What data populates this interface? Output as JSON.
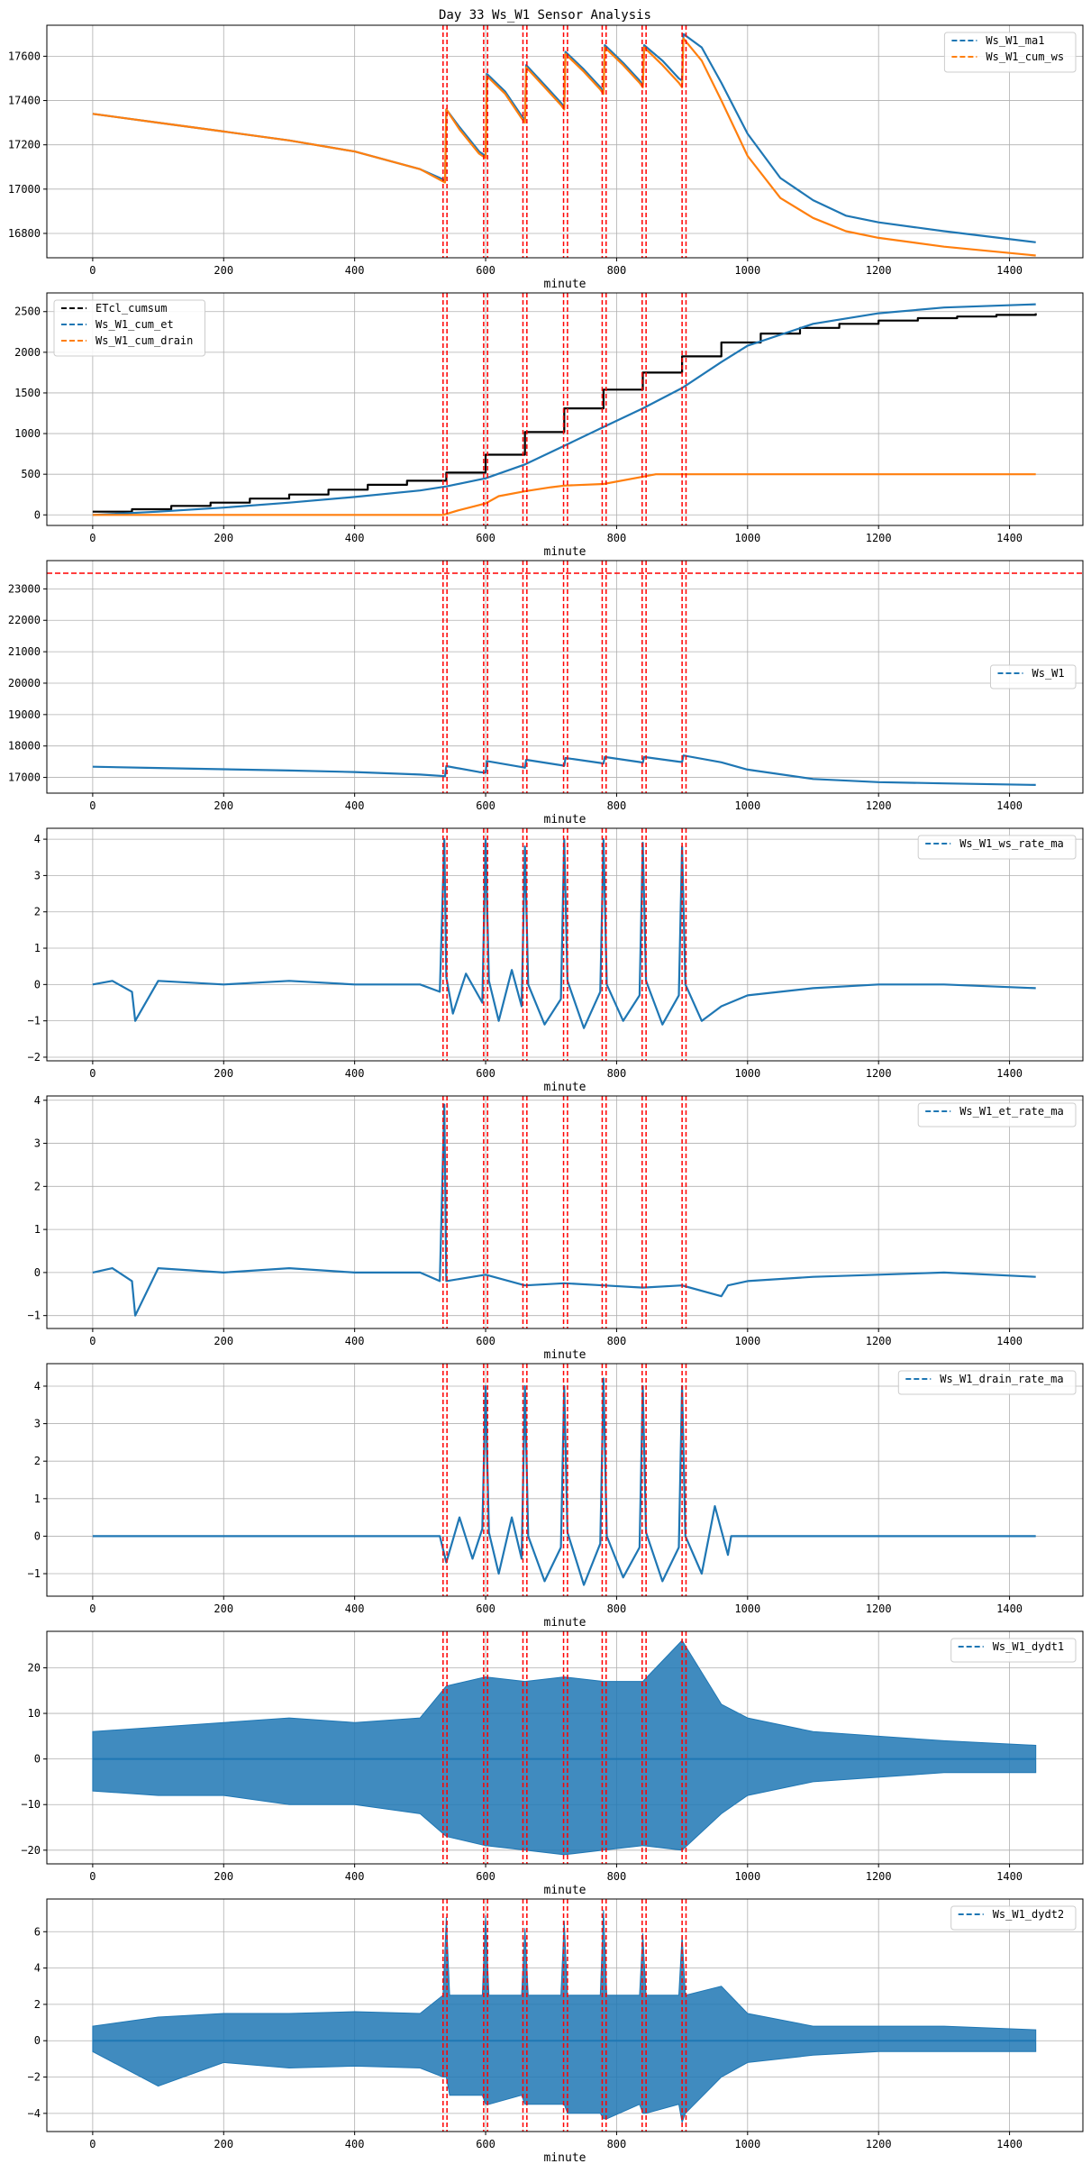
{
  "figure": {
    "title": "Day 33 Ws_W1 Sensor Analysis"
  },
  "event_lines_x": [
    535,
    541,
    597,
    603,
    657,
    663,
    719,
    725,
    778,
    784,
    839,
    845,
    900,
    906
  ],
  "chart_data": [
    {
      "type": "line",
      "xlabel": "minute",
      "xlim": [
        -70,
        1512
      ],
      "xticks": [
        0,
        200,
        400,
        600,
        800,
        1000,
        1200,
        1400
      ],
      "ylim": [
        16690,
        17740
      ],
      "yticks": [
        16800,
        17000,
        17200,
        17400,
        17600
      ],
      "grid": true,
      "legend_position": "top-right",
      "series": [
        {
          "name": "Ws_W1_ma1",
          "color": "#1f77b4",
          "x": [
            0,
            100,
            200,
            300,
            400,
            500,
            538,
            540,
            560,
            590,
            600,
            602,
            630,
            655,
            660,
            662,
            690,
            715,
            720,
            722,
            750,
            775,
            780,
            782,
            810,
            835,
            840,
            842,
            870,
            895,
            900,
            902,
            930,
            960,
            1000,
            1050,
            1100,
            1150,
            1200,
            1300,
            1440
          ],
          "y": [
            17340,
            17300,
            17260,
            17220,
            17170,
            17090,
            17040,
            17360,
            17280,
            17170,
            17150,
            17520,
            17440,
            17330,
            17310,
            17560,
            17470,
            17390,
            17370,
            17620,
            17540,
            17460,
            17440,
            17650,
            17570,
            17490,
            17470,
            17650,
            17580,
            17500,
            17490,
            17700,
            17640,
            17480,
            17250,
            17050,
            16950,
            16880,
            16850,
            16810,
            16760
          ]
        },
        {
          "name": "Ws_W1_cum_ws",
          "color": "#ff7f0e",
          "x": [
            0,
            100,
            200,
            300,
            400,
            500,
            538,
            540,
            560,
            590,
            600,
            602,
            630,
            655,
            660,
            662,
            690,
            715,
            720,
            722,
            750,
            775,
            780,
            782,
            810,
            835,
            840,
            842,
            870,
            895,
            900,
            902,
            930,
            960,
            1000,
            1050,
            1100,
            1150,
            1200,
            1300,
            1440
          ],
          "y": [
            17340,
            17300,
            17260,
            17220,
            17170,
            17090,
            17030,
            17360,
            17270,
            17160,
            17140,
            17510,
            17430,
            17320,
            17300,
            17550,
            17460,
            17380,
            17360,
            17610,
            17530,
            17450,
            17430,
            17640,
            17560,
            17480,
            17460,
            17640,
            17560,
            17480,
            17460,
            17680,
            17580,
            17400,
            17150,
            16960,
            16870,
            16810,
            16780,
            16740,
            16700
          ]
        }
      ]
    },
    {
      "type": "line",
      "xlabel": "minute",
      "xlim": [
        -70,
        1512
      ],
      "xticks": [
        0,
        200,
        400,
        600,
        800,
        1000,
        1200,
        1400
      ],
      "ylim": [
        -130,
        2730
      ],
      "yticks": [
        0,
        500,
        1000,
        1500,
        2000,
        2500
      ],
      "grid": true,
      "legend_position": "top-left",
      "series": [
        {
          "name": "ETcl_cumsum",
          "color": "#000000",
          "step": true,
          "x": [
            0,
            60,
            120,
            180,
            240,
            300,
            360,
            420,
            480,
            540,
            600,
            660,
            720,
            780,
            840,
            900,
            960,
            1020,
            1080,
            1140,
            1200,
            1260,
            1320,
            1380,
            1440
          ],
          "y": [
            40,
            70,
            110,
            150,
            200,
            250,
            310,
            370,
            420,
            520,
            740,
            1020,
            1310,
            1540,
            1750,
            1950,
            2120,
            2230,
            2300,
            2350,
            2390,
            2420,
            2440,
            2460,
            2480
          ]
        },
        {
          "name": "Ws_W1_cum_et",
          "color": "#1f77b4",
          "x": [
            0,
            100,
            200,
            300,
            400,
            500,
            540,
            600,
            660,
            720,
            780,
            840,
            900,
            960,
            1000,
            1100,
            1200,
            1300,
            1440
          ],
          "y": [
            0,
            40,
            90,
            150,
            220,
            300,
            350,
            450,
            620,
            850,
            1080,
            1310,
            1560,
            1880,
            2080,
            2350,
            2480,
            2550,
            2590
          ]
        },
        {
          "name": "Ws_W1_cum_drain",
          "color": "#ff7f0e",
          "x": [
            0,
            100,
            200,
            300,
            400,
            500,
            535,
            560,
            600,
            620,
            660,
            700,
            720,
            780,
            840,
            860,
            900,
            1000,
            1100,
            1200,
            1300,
            1440
          ],
          "y": [
            0,
            0,
            0,
            0,
            0,
            0,
            0,
            60,
            140,
            230,
            290,
            340,
            360,
            380,
            470,
            500,
            500,
            500,
            500,
            500,
            500,
            500
          ]
        }
      ]
    },
    {
      "type": "line",
      "xlabel": "minute",
      "xlim": [
        -70,
        1512
      ],
      "xticks": [
        0,
        200,
        400,
        600,
        800,
        1000,
        1200,
        1400
      ],
      "ylim": [
        16500,
        23900
      ],
      "yticks": [
        17000,
        18000,
        19000,
        20000,
        21000,
        22000,
        23000
      ],
      "grid": true,
      "legend_position": "center-right",
      "hline": {
        "y": 23500,
        "color": "#ff0000"
      },
      "series": [
        {
          "name": "Ws_W1",
          "color": "#1f77b4",
          "x": [
            0,
            100,
            200,
            300,
            400,
            500,
            538,
            540,
            590,
            600,
            602,
            655,
            660,
            662,
            715,
            720,
            722,
            775,
            780,
            782,
            835,
            840,
            842,
            895,
            900,
            902,
            960,
            1000,
            1100,
            1200,
            1300,
            1440
          ],
          "y": [
            17340,
            17300,
            17260,
            17220,
            17170,
            17090,
            17040,
            17360,
            17170,
            17150,
            17520,
            17330,
            17310,
            17560,
            17390,
            17370,
            17620,
            17460,
            17440,
            17650,
            17490,
            17470,
            17650,
            17500,
            17490,
            17700,
            17480,
            17250,
            16950,
            16850,
            16810,
            16760
          ]
        }
      ]
    },
    {
      "type": "line",
      "xlabel": "minute",
      "xlim": [
        -70,
        1512
      ],
      "xticks": [
        0,
        200,
        400,
        600,
        800,
        1000,
        1200,
        1400
      ],
      "ylim": [
        -2.1,
        4.3
      ],
      "yticks": [
        -2,
        -1,
        0,
        1,
        2,
        3,
        4
      ],
      "grid": true,
      "legend_position": "top-right",
      "series": [
        {
          "name": "Ws_W1_ws_rate_ma",
          "color": "#1f77b4",
          "x": [
            0,
            30,
            60,
            65,
            100,
            200,
            300,
            400,
            500,
            530,
            537,
            540,
            550,
            570,
            595,
            600,
            605,
            620,
            640,
            655,
            660,
            665,
            690,
            715,
            720,
            725,
            750,
            775,
            780,
            785,
            810,
            835,
            840,
            845,
            870,
            895,
            900,
            905,
            930,
            960,
            1000,
            1100,
            1200,
            1300,
            1440
          ],
          "y": [
            0,
            0.1,
            -0.2,
            -1.0,
            0.1,
            0,
            0.1,
            0,
            0,
            -0.2,
            4.0,
            0.2,
            -0.8,
            0.3,
            -0.5,
            4.0,
            0.1,
            -1.0,
            0.4,
            -0.6,
            3.8,
            0,
            -1.1,
            -0.4,
            4.0,
            0.1,
            -1.2,
            -0.2,
            4.0,
            0,
            -1.0,
            -0.3,
            3.9,
            0.1,
            -1.1,
            -0.3,
            3.8,
            0,
            -1.0,
            -0.6,
            -0.3,
            -0.1,
            0,
            0,
            -0.1
          ]
        }
      ]
    },
    {
      "type": "line",
      "xlabel": "minute",
      "xlim": [
        -70,
        1512
      ],
      "xticks": [
        0,
        200,
        400,
        600,
        800,
        1000,
        1200,
        1400
      ],
      "ylim": [
        -1.3,
        4.1
      ],
      "yticks": [
        -1,
        0,
        1,
        2,
        3,
        4
      ],
      "grid": true,
      "legend_position": "top-right",
      "series": [
        {
          "name": "Ws_W1_et_rate_ma",
          "color": "#1f77b4",
          "x": [
            0,
            30,
            60,
            65,
            100,
            200,
            300,
            400,
            500,
            530,
            537,
            540,
            600,
            660,
            720,
            780,
            840,
            900,
            960,
            970,
            1000,
            1100,
            1200,
            1300,
            1440
          ],
          "y": [
            0,
            0.1,
            -0.2,
            -1.0,
            0.1,
            0,
            0.1,
            0,
            0,
            -0.2,
            3.9,
            -0.2,
            -0.05,
            -0.3,
            -0.25,
            -0.3,
            -0.35,
            -0.3,
            -0.55,
            -0.3,
            -0.2,
            -0.1,
            -0.05,
            0,
            -0.1
          ]
        }
      ]
    },
    {
      "type": "line",
      "xlabel": "minute",
      "xlim": [
        -70,
        1512
      ],
      "xticks": [
        0,
        200,
        400,
        600,
        800,
        1000,
        1200,
        1400
      ],
      "ylim": [
        -1.6,
        4.6
      ],
      "yticks": [
        -1,
        0,
        1,
        2,
        3,
        4
      ],
      "grid": true,
      "legend_position": "top-right",
      "series": [
        {
          "name": "Ws_W1_drain_rate_ma",
          "color": "#1f77b4",
          "x": [
            0,
            200,
            400,
            530,
            540,
            560,
            580,
            595,
            600,
            605,
            620,
            640,
            655,
            660,
            665,
            690,
            715,
            720,
            725,
            750,
            775,
            780,
            785,
            810,
            835,
            840,
            845,
            870,
            895,
            900,
            905,
            930,
            950,
            970,
            975,
            1100,
            1200,
            1300,
            1440
          ],
          "y": [
            0,
            0,
            0,
            0,
            -0.7,
            0.5,
            -0.6,
            0.2,
            4.0,
            0.1,
            -1.0,
            0.5,
            -0.6,
            4.0,
            0,
            -1.2,
            -0.3,
            4.0,
            0.1,
            -1.3,
            -0.2,
            4.2,
            0,
            -1.1,
            -0.3,
            4.0,
            0.1,
            -1.2,
            -0.3,
            4.0,
            0,
            -1.0,
            0.8,
            -0.5,
            0,
            0,
            0,
            0,
            0
          ]
        }
      ]
    },
    {
      "type": "line",
      "xlabel": "minute",
      "xlim": [
        -70,
        1512
      ],
      "xticks": [
        0,
        200,
        400,
        600,
        800,
        1000,
        1200,
        1400
      ],
      "ylim": [
        -23,
        28
      ],
      "yticks": [
        -20,
        -10,
        0,
        10,
        20
      ],
      "grid": true,
      "legend_position": "top-right",
      "series": [
        {
          "name": "Ws_W1_dydt1",
          "color": "#1f77b4",
          "envelope": true,
          "x": [
            0,
            100,
            200,
            300,
            400,
            500,
            540,
            600,
            660,
            720,
            780,
            840,
            900,
            960,
            1000,
            1100,
            1200,
            1300,
            1440
          ],
          "y_max": [
            6,
            7,
            8,
            9,
            8,
            9,
            16,
            18,
            17,
            18,
            17,
            17,
            26,
            12,
            9,
            6,
            5,
            4,
            3
          ],
          "y_min": [
            -7,
            -8,
            -8,
            -10,
            -10,
            -12,
            -17,
            -19,
            -20,
            -21,
            -20,
            -19,
            -20,
            -12,
            -8,
            -5,
            -4,
            -3,
            -3
          ]
        }
      ]
    },
    {
      "type": "line",
      "xlabel": "minute",
      "xlim": [
        -70,
        1512
      ],
      "xticks": [
        0,
        200,
        400,
        600,
        800,
        1000,
        1200,
        1400
      ],
      "ylim": [
        -5.0,
        7.8
      ],
      "yticks": [
        -4,
        -2,
        0,
        2,
        4,
        6
      ],
      "grid": true,
      "legend_position": "top-right",
      "series": [
        {
          "name": "Ws_W1_dydt2",
          "color": "#1f77b4",
          "envelope": true,
          "x": [
            0,
            100,
            200,
            300,
            400,
            500,
            535,
            540,
            545,
            595,
            600,
            605,
            655,
            660,
            665,
            715,
            720,
            725,
            775,
            780,
            785,
            835,
            840,
            845,
            895,
            900,
            905,
            960,
            1000,
            1100,
            1200,
            1300,
            1440
          ],
          "y_max": [
            0.8,
            1.3,
            1.5,
            1.5,
            1.6,
            1.5,
            2.5,
            6.8,
            2.5,
            2.5,
            6.9,
            2.5,
            2.5,
            6.2,
            2.5,
            2.5,
            6.6,
            2.5,
            2.5,
            7.2,
            2.5,
            2.5,
            5.9,
            2.5,
            2.5,
            5.8,
            2.5,
            3.0,
            1.5,
            0.8,
            0.8,
            0.8,
            0.6
          ],
          "y_min": [
            -0.6,
            -2.5,
            -1.2,
            -1.5,
            -1.4,
            -1.5,
            -2.0,
            -2.0,
            -3.0,
            -3.0,
            -3.5,
            -3.5,
            -3.0,
            -3.5,
            -3.5,
            -3.5,
            -3.5,
            -4.0,
            -4.0,
            -4.3,
            -4.3,
            -3.5,
            -4.0,
            -4.0,
            -3.5,
            -4.5,
            -4.0,
            -2.0,
            -1.2,
            -0.8,
            -0.6,
            -0.6,
            -0.6
          ]
        }
      ]
    }
  ]
}
